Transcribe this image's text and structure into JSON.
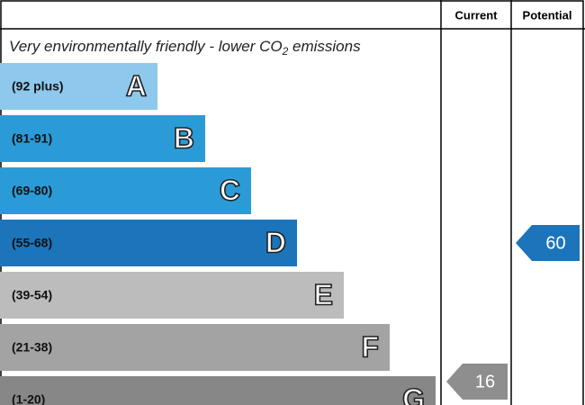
{
  "header": {
    "current": "Current",
    "potential": "Potential"
  },
  "subtitle": {
    "text": "Very environmentally friendly - lower CO",
    "subscript": "2",
    "suffix": " emissions"
  },
  "bands": [
    {
      "range": "(92 plus)",
      "letter": "A"
    },
    {
      "range": "(81-91)",
      "letter": "B"
    },
    {
      "range": "(69-80)",
      "letter": "C"
    },
    {
      "range": "(55-68)",
      "letter": "D"
    },
    {
      "range": "(39-54)",
      "letter": "E"
    },
    {
      "range": "(21-38)",
      "letter": "F"
    },
    {
      "range": "(1-20)",
      "letter": "G"
    }
  ],
  "current": {
    "value": 16
  },
  "potential": {
    "value": 60
  }
}
